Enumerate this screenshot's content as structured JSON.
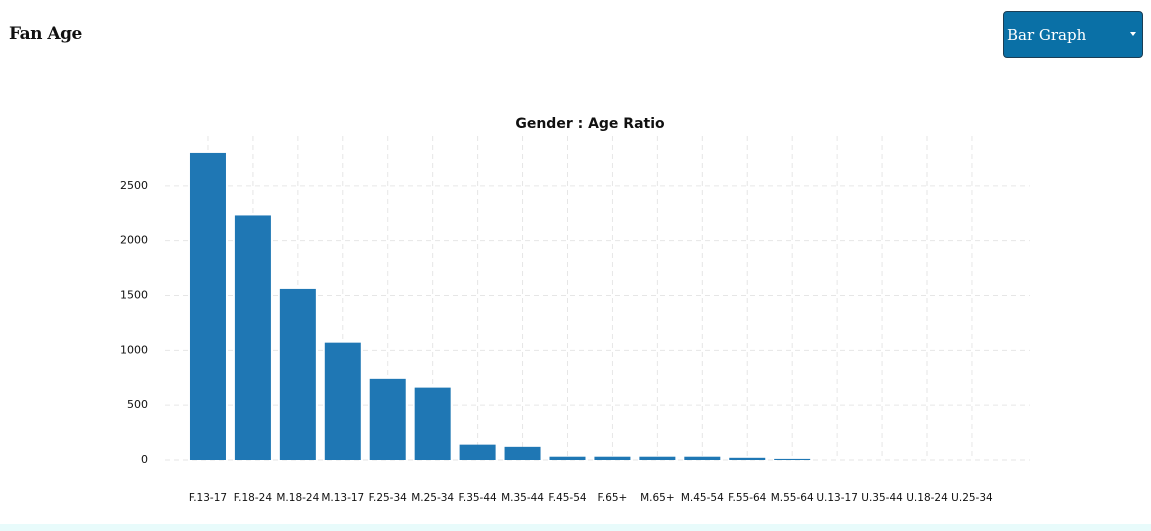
{
  "header": {
    "title": "Fan Age"
  },
  "dropdown": {
    "label": "Bar Graph"
  },
  "chart_data": {
    "type": "bar",
    "title": "Gender : Age Ratio",
    "categories": [
      "F.13-17",
      "F.18-24",
      "M.18-24",
      "M.13-17",
      "F.25-34",
      "M.25-34",
      "F.35-44",
      "M.35-44",
      "F.45-54",
      "F.65+",
      "M.65+",
      "M.45-54",
      "F.55-64",
      "M.55-64",
      "U.13-17",
      "U.35-44",
      "U.18-24",
      "U.25-34"
    ],
    "values": [
      2800,
      2230,
      1560,
      1070,
      740,
      660,
      140,
      120,
      30,
      30,
      30,
      30,
      20,
      10,
      0,
      0,
      0,
      0
    ],
    "color": "#1f77b4",
    "ylim": [
      0,
      3000
    ],
    "yticks": [
      0,
      500,
      1000,
      1500,
      2000,
      2500
    ],
    "grid": true
  }
}
